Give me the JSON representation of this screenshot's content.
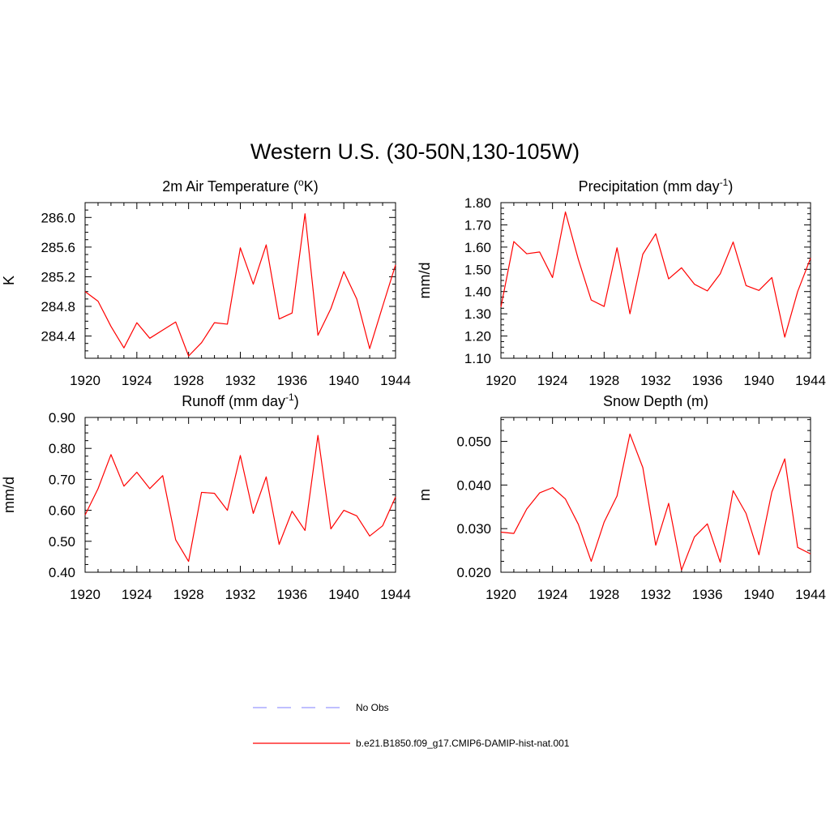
{
  "page": {
    "title": "Western U.S. (30-50N,130-105W)"
  },
  "colors": {
    "model": "#ff0000",
    "obs": "#9999ff"
  },
  "legend": {
    "items": [
      {
        "label": "No Obs",
        "style": "dashed",
        "color": "#9999ff"
      },
      {
        "label": "b.e21.B1850.f09_g17.CMIP6-DAMIP-hist-nat.001",
        "style": "solid",
        "color": "#ff0000"
      }
    ]
  },
  "chart_data": [
    {
      "type": "line",
      "title_parts": [
        "2m Air Temperature (",
        "o",
        "K)"
      ],
      "title_style": [
        "normal",
        "sup",
        "normal"
      ],
      "ylabel": "K",
      "xlim": [
        1920,
        1944
      ],
      "ylim": [
        284.1,
        286.2
      ],
      "x_ticks": [
        1920,
        1924,
        1928,
        1932,
        1936,
        1940,
        1944
      ],
      "y_ticks": [
        284.4,
        284.8,
        285.2,
        285.6,
        286.0
      ],
      "y_tick_labels": [
        "284.4",
        "284.8",
        "285.2",
        "285.6",
        "286.0"
      ],
      "y_minor_step": 0.1,
      "x": [
        1920,
        1921,
        1922,
        1923,
        1924,
        1925,
        1926,
        1927,
        1928,
        1929,
        1930,
        1931,
        1932,
        1933,
        1934,
        1935,
        1936,
        1937,
        1938,
        1939,
        1940,
        1941,
        1942,
        1943,
        1944
      ],
      "series": [
        {
          "values": [
            285.0,
            284.87,
            284.53,
            284.24,
            284.58,
            284.37,
            284.48,
            284.59,
            284.13,
            284.31,
            284.58,
            284.56,
            285.59,
            285.1,
            285.63,
            284.63,
            284.71,
            286.05,
            284.41,
            284.77,
            285.27,
            284.9,
            284.23,
            284.8,
            285.36
          ]
        }
      ]
    },
    {
      "type": "line",
      "title_parts": [
        "Precipitation (mm day",
        "-1",
        ")"
      ],
      "title_style": [
        "normal",
        "sup",
        "normal"
      ],
      "ylabel": "mm/d",
      "xlim": [
        1920,
        1944
      ],
      "ylim": [
        1.1,
        1.8
      ],
      "x_ticks": [
        1920,
        1924,
        1928,
        1932,
        1936,
        1940,
        1944
      ],
      "y_ticks": [
        1.1,
        1.2,
        1.3,
        1.4,
        1.5,
        1.6,
        1.7,
        1.8
      ],
      "y_tick_labels": [
        "1.10",
        "1.20",
        "1.30",
        "1.40",
        "1.50",
        "1.60",
        "1.70",
        "1.80"
      ],
      "y_minor_step": 0.025,
      "x": [
        1920,
        1921,
        1922,
        1923,
        1924,
        1925,
        1926,
        1927,
        1928,
        1929,
        1930,
        1931,
        1932,
        1933,
        1934,
        1935,
        1936,
        1937,
        1938,
        1939,
        1940,
        1941,
        1942,
        1943,
        1944
      ],
      "series": [
        {
          "values": [
            1.33,
            1.625,
            1.57,
            1.578,
            1.463,
            1.758,
            1.545,
            1.362,
            1.333,
            1.597,
            1.3,
            1.568,
            1.66,
            1.457,
            1.507,
            1.433,
            1.403,
            1.48,
            1.623,
            1.427,
            1.405,
            1.463,
            1.195,
            1.4,
            1.55
          ]
        }
      ]
    },
    {
      "type": "line",
      "title_parts": [
        "Runoff (mm day",
        "-1",
        ")"
      ],
      "title_style": [
        "normal",
        "sup",
        "normal"
      ],
      "ylabel": "mm/d",
      "xlim": [
        1920,
        1944
      ],
      "ylim": [
        0.4,
        0.9
      ],
      "x_ticks": [
        1920,
        1924,
        1928,
        1932,
        1936,
        1940,
        1944
      ],
      "y_ticks": [
        0.4,
        0.5,
        0.6,
        0.7,
        0.8,
        0.9
      ],
      "y_tick_labels": [
        "0.40",
        "0.50",
        "0.60",
        "0.70",
        "0.80",
        "0.90"
      ],
      "y_minor_step": 0.025,
      "x": [
        1920,
        1921,
        1922,
        1923,
        1924,
        1925,
        1926,
        1927,
        1928,
        1929,
        1930,
        1931,
        1932,
        1933,
        1934,
        1935,
        1936,
        1937,
        1938,
        1939,
        1940,
        1941,
        1942,
        1943,
        1944
      ],
      "series": [
        {
          "values": [
            0.585,
            0.67,
            0.78,
            0.678,
            0.723,
            0.67,
            0.712,
            0.505,
            0.435,
            0.658,
            0.655,
            0.6,
            0.777,
            0.59,
            0.708,
            0.49,
            0.597,
            0.535,
            0.842,
            0.54,
            0.6,
            0.582,
            0.517,
            0.55,
            0.643
          ]
        }
      ]
    },
    {
      "type": "line",
      "title_parts": [
        "Snow Depth (m)"
      ],
      "title_style": [
        "normal"
      ],
      "ylabel": "m",
      "xlim": [
        1920,
        1944
      ],
      "ylim": [
        0.02,
        0.0555
      ],
      "x_ticks": [
        1920,
        1924,
        1928,
        1932,
        1936,
        1940,
        1944
      ],
      "y_ticks": [
        0.02,
        0.03,
        0.04,
        0.05
      ],
      "y_tick_labels": [
        "0.020",
        "0.030",
        "0.040",
        "0.050"
      ],
      "y_minor_step": 0.0025,
      "x": [
        1920,
        1921,
        1922,
        1923,
        1924,
        1925,
        1926,
        1927,
        1928,
        1929,
        1930,
        1931,
        1932,
        1933,
        1934,
        1935,
        1936,
        1937,
        1938,
        1939,
        1940,
        1941,
        1942,
        1943,
        1944
      ],
      "series": [
        {
          "values": [
            0.0292,
            0.0289,
            0.0345,
            0.0382,
            0.0394,
            0.0368,
            0.031,
            0.0225,
            0.0315,
            0.0375,
            0.0517,
            0.044,
            0.0262,
            0.0358,
            0.0205,
            0.0281,
            0.0311,
            0.0223,
            0.0387,
            0.0335,
            0.024,
            0.0384,
            0.046,
            0.0257,
            0.0242
          ]
        }
      ]
    }
  ]
}
